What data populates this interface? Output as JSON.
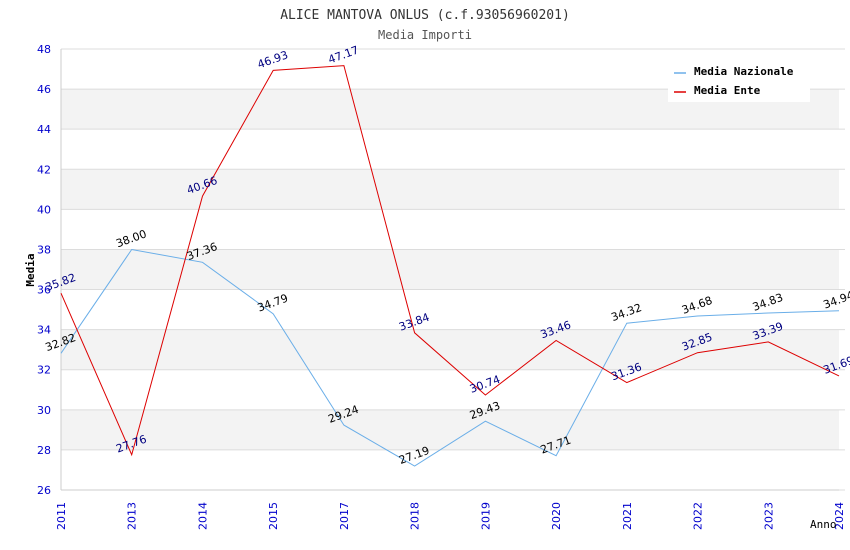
{
  "chart_data": {
    "type": "line",
    "title": "ALICE MANTOVA ONLUS (c.f.93056960201)",
    "subtitle": "Media Importi",
    "xlabel": "Anno",
    "ylabel": "Media",
    "ylim": [
      26,
      48
    ],
    "ytick_step": 2,
    "grid": true,
    "legend_position": "top-right",
    "categories": [
      "2011",
      "2013",
      "2014",
      "2015",
      "2017",
      "2018",
      "2019",
      "2020",
      "2021",
      "2022",
      "2023",
      "2024"
    ],
    "series": [
      {
        "name": "Media Nazionale",
        "color": "#6aaee8",
        "label_color": "#000000",
        "values": [
          32.82,
          38.0,
          37.36,
          34.79,
          29.24,
          27.19,
          29.43,
          27.71,
          34.32,
          34.68,
          34.83,
          34.94
        ],
        "labels": [
          "32.82",
          "38.00",
          "37.36",
          "34.79",
          "29.24",
          "27.19",
          "29.43",
          "27.71",
          "34.32",
          "34.68",
          "34.83",
          "34.94"
        ]
      },
      {
        "name": "Media Ente",
        "color": "#dd0000",
        "label_color": "#000080",
        "values": [
          35.82,
          27.76,
          40.66,
          46.93,
          47.17,
          33.84,
          30.74,
          33.46,
          31.36,
          32.85,
          33.39,
          31.69
        ],
        "labels": [
          "35.82",
          "27.76",
          "40.66",
          "46.93",
          "47.17",
          "33.84",
          "30.74",
          "33.46",
          "31.36",
          "32.85",
          "33.39",
          "31.69"
        ]
      }
    ]
  }
}
